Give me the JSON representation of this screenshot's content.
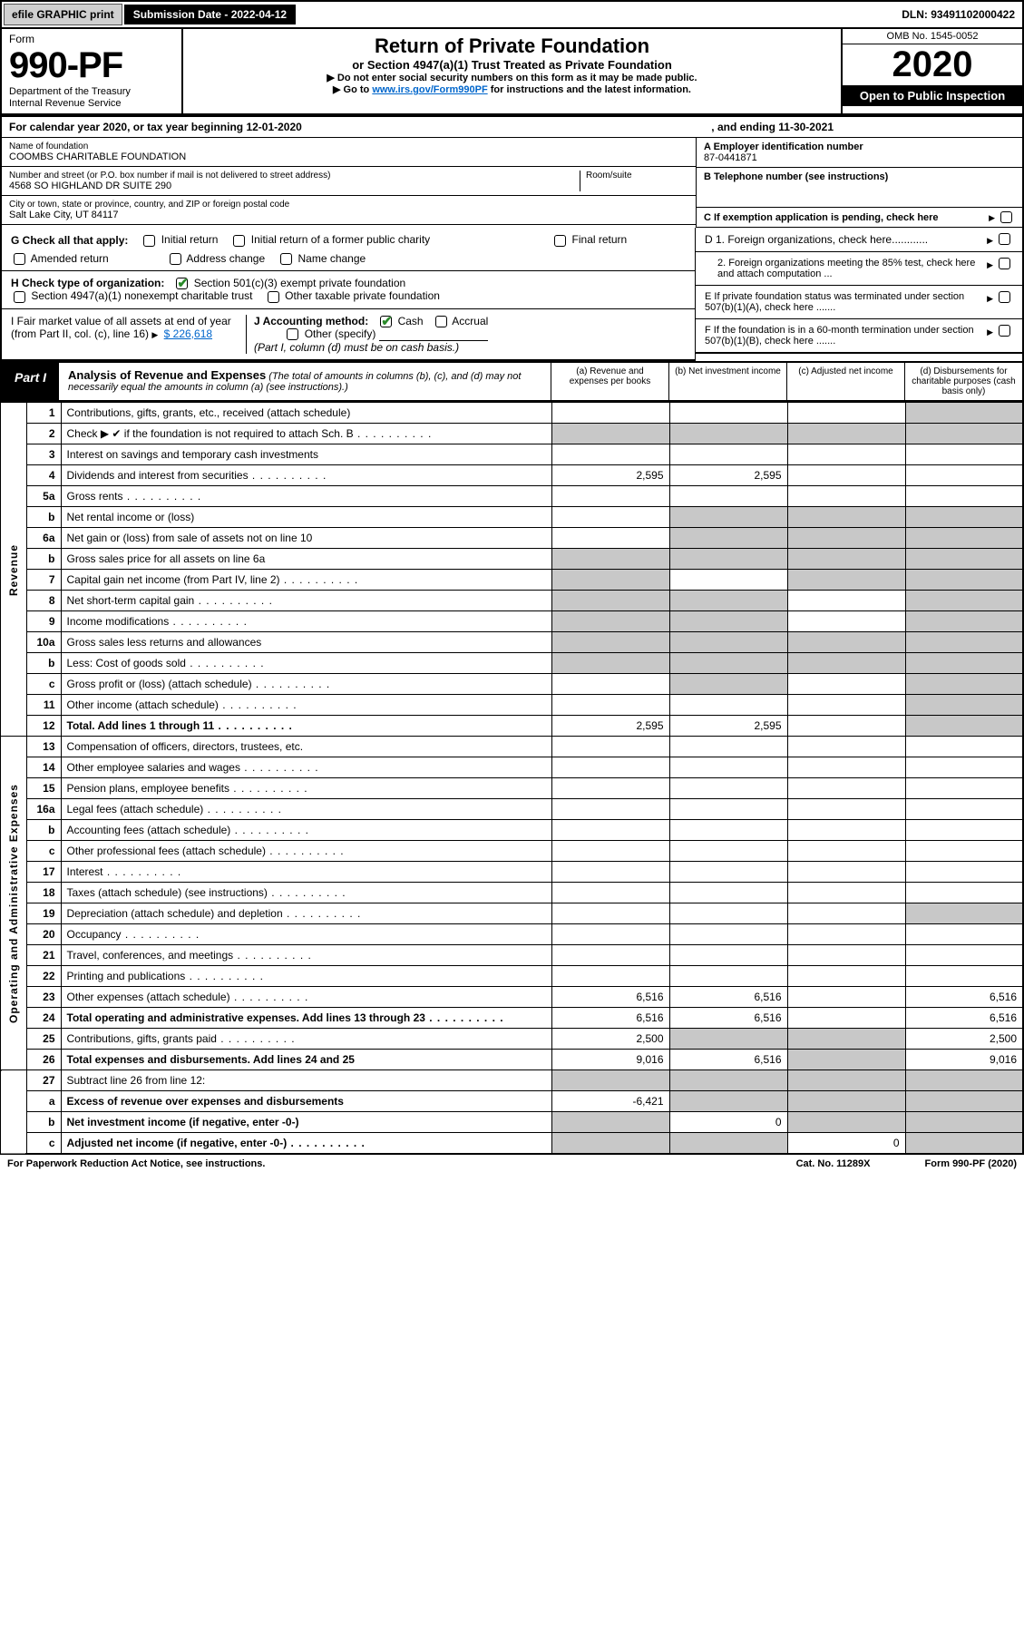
{
  "topbar": {
    "efile": "efile GRAPHIC print",
    "submission_label": "Submission Date - 2022-04-12",
    "dln": "DLN: 93491102000422"
  },
  "header": {
    "form_label": "Form",
    "form_number": "990-PF",
    "dept": "Department of the Treasury\nInternal Revenue Service",
    "title": "Return of Private Foundation",
    "subtitle": "or Section 4947(a)(1) Trust Treated as Private Foundation",
    "instr1": "▶ Do not enter social security numbers on this form as it may be made public.",
    "instr2_pre": "▶ Go to ",
    "instr2_link": "www.irs.gov/Form990PF",
    "instr2_post": " for instructions and the latest information.",
    "omb": "OMB No. 1545-0052",
    "year": "2020",
    "open": "Open to Public Inspection"
  },
  "calendar": {
    "text_a": "For calendar year 2020, or tax year beginning 12-01-2020",
    "text_b": ", and ending 11-30-2021"
  },
  "entity": {
    "name_label": "Name of foundation",
    "name": "COOMBS CHARITABLE FOUNDATION",
    "addr_label": "Number and street (or P.O. box number if mail is not delivered to street address)",
    "addr": "4568 SO HIGHLAND DR SUITE 290",
    "room_label": "Room/suite",
    "city_label": "City or town, state or province, country, and ZIP or foreign postal code",
    "city": "Salt Lake City, UT  84117",
    "a_label": "A Employer identification number",
    "ein": "87-0441871",
    "b_label": "B Telephone number (see instructions)",
    "c_label": "C If exemption application is pending, check here"
  },
  "checks": {
    "g_label": "G Check all that apply:",
    "g_items": [
      "Initial return",
      "Initial return of a former public charity",
      "Final return",
      "Amended return",
      "Address change",
      "Name change"
    ],
    "h_label": "H Check type of organization:",
    "h_items": [
      "Section 501(c)(3) exempt private foundation",
      "Section 4947(a)(1) nonexempt charitable trust",
      "Other taxable private foundation"
    ],
    "i_label": "I Fair market value of all assets at end of year (from Part II, col. (c), line 16)",
    "i_value": "$  226,618",
    "j_label": "J Accounting method:",
    "j_cash": "Cash",
    "j_accrual": "Accrual",
    "j_other": "Other (specify)",
    "j_note": "(Part I, column (d) must be on cash basis.)",
    "d1": "D 1. Foreign organizations, check here............",
    "d2": "2. Foreign organizations meeting the 85% test, check here and attach computation ...",
    "e": "E  If private foundation status was terminated under section 507(b)(1)(A), check here .......",
    "f": "F  If the foundation is in a 60-month termination under section 507(b)(1)(B), check here ......."
  },
  "part1": {
    "label": "Part I",
    "title": "Analysis of Revenue and Expenses",
    "note": "(The total of amounts in columns (b), (c), and (d) may not necessarily equal the amounts in column (a) (see instructions).)",
    "col_a": "(a)   Revenue and expenses per books",
    "col_b": "(b)   Net investment income",
    "col_c": "(c)   Adjusted net income",
    "col_d": "(d)  Disbursements for charitable purposes (cash basis only)"
  },
  "sections": {
    "revenue": "Revenue",
    "expenses": "Operating and Administrative Expenses"
  },
  "rows": [
    {
      "n": "1",
      "d": "Contributions, gifts, grants, etc., received (attach schedule)",
      "a": "",
      "b": "",
      "c": "",
      "dsh": "",
      "shade_b": false,
      "shade_c": false,
      "shade_d": true
    },
    {
      "n": "2",
      "d": "Check ▶ ✔ if the foundation is not required to attach Sch. B",
      "a": "",
      "b": "",
      "c": "",
      "dsh": "",
      "shade_a": true,
      "shade_b": true,
      "shade_c": true,
      "shade_d": true,
      "dots": true
    },
    {
      "n": "3",
      "d": "Interest on savings and temporary cash investments",
      "a": "",
      "b": "",
      "c": "",
      "dsh": ""
    },
    {
      "n": "4",
      "d": "Dividends and interest from securities",
      "a": "2,595",
      "b": "2,595",
      "c": "",
      "dsh": "",
      "dots": true
    },
    {
      "n": "5a",
      "d": "Gross rents",
      "a": "",
      "b": "",
      "c": "",
      "dsh": "",
      "dots": true
    },
    {
      "n": "b",
      "d": "Net rental income or (loss)",
      "a": "",
      "b": "",
      "c": "",
      "dsh": "",
      "shade_a": false,
      "shade_b": true,
      "shade_c": true,
      "shade_d": true,
      "inset": true
    },
    {
      "n": "6a",
      "d": "Net gain or (loss) from sale of assets not on line 10",
      "a": "",
      "b": "",
      "c": "",
      "dsh": "",
      "shade_b": true,
      "shade_c": true,
      "shade_d": true
    },
    {
      "n": "b",
      "d": "Gross sales price for all assets on line 6a",
      "a": "",
      "b": "",
      "c": "",
      "dsh": "",
      "shade_a": true,
      "shade_b": true,
      "shade_c": true,
      "shade_d": true,
      "inset": true
    },
    {
      "n": "7",
      "d": "Capital gain net income (from Part IV, line 2)",
      "a": "",
      "b": "",
      "c": "",
      "dsh": "",
      "shade_a": true,
      "shade_c": true,
      "shade_d": true,
      "dots": true
    },
    {
      "n": "8",
      "d": "Net short-term capital gain",
      "a": "",
      "b": "",
      "c": "",
      "dsh": "",
      "shade_a": true,
      "shade_b": true,
      "shade_d": true,
      "dots": true
    },
    {
      "n": "9",
      "d": "Income modifications",
      "a": "",
      "b": "",
      "c": "",
      "dsh": "",
      "shade_a": true,
      "shade_b": true,
      "shade_d": true,
      "dots": true
    },
    {
      "n": "10a",
      "d": "Gross sales less returns and allowances",
      "a": "",
      "b": "",
      "c": "",
      "dsh": "",
      "shade_a": true,
      "shade_b": true,
      "shade_c": true,
      "shade_d": true,
      "inset": true
    },
    {
      "n": "b",
      "d": "Less: Cost of goods sold",
      "a": "",
      "b": "",
      "c": "",
      "dsh": "",
      "shade_a": true,
      "shade_b": true,
      "shade_c": true,
      "shade_d": true,
      "dots": true,
      "inset": true
    },
    {
      "n": "c",
      "d": "Gross profit or (loss) (attach schedule)",
      "a": "",
      "b": "",
      "c": "",
      "dsh": "",
      "shade_b": true,
      "shade_d": true,
      "dots": true
    },
    {
      "n": "11",
      "d": "Other income (attach schedule)",
      "a": "",
      "b": "",
      "c": "",
      "dsh": "",
      "shade_d": true,
      "dots": true
    },
    {
      "n": "12",
      "d": "Total. Add lines 1 through 11",
      "a": "2,595",
      "b": "2,595",
      "c": "",
      "dsh": "",
      "bold": true,
      "shade_d": true,
      "dots": true
    }
  ],
  "exp_rows": [
    {
      "n": "13",
      "d": "Compensation of officers, directors, trustees, etc."
    },
    {
      "n": "14",
      "d": "Other employee salaries and wages",
      "dots": true
    },
    {
      "n": "15",
      "d": "Pension plans, employee benefits",
      "dots": true
    },
    {
      "n": "16a",
      "d": "Legal fees (attach schedule)",
      "dots": true
    },
    {
      "n": "b",
      "d": "Accounting fees (attach schedule)",
      "dots": true
    },
    {
      "n": "c",
      "d": "Other professional fees (attach schedule)",
      "dots": true
    },
    {
      "n": "17",
      "d": "Interest",
      "dots": true
    },
    {
      "n": "18",
      "d": "Taxes (attach schedule) (see instructions)",
      "dots": true
    },
    {
      "n": "19",
      "d": "Depreciation (attach schedule) and depletion",
      "dots": true,
      "shade_d": true
    },
    {
      "n": "20",
      "d": "Occupancy",
      "dots": true
    },
    {
      "n": "21",
      "d": "Travel, conferences, and meetings",
      "dots": true
    },
    {
      "n": "22",
      "d": "Printing and publications",
      "dots": true
    },
    {
      "n": "23",
      "d": "Other expenses (attach schedule)",
      "a": "6,516",
      "b": "6,516",
      "dsh": "6,516",
      "dots": true
    },
    {
      "n": "24",
      "d": "Total operating and administrative expenses. Add lines 13 through 23",
      "a": "6,516",
      "b": "6,516",
      "dsh": "6,516",
      "bold": true,
      "dots": true
    },
    {
      "n": "25",
      "d": "Contributions, gifts, grants paid",
      "a": "2,500",
      "dsh": "2,500",
      "shade_b": true,
      "shade_c": true,
      "dots": true
    },
    {
      "n": "26",
      "d": "Total expenses and disbursements. Add lines 24 and 25",
      "a": "9,016",
      "b": "6,516",
      "dsh": "9,016",
      "bold": true,
      "shade_c": true
    }
  ],
  "net_rows": [
    {
      "n": "27",
      "d": "Subtract line 26 from line 12:",
      "shade_a": true,
      "shade_b": true,
      "shade_c": true,
      "shade_d": true
    },
    {
      "n": "a",
      "d": "Excess of revenue over expenses and disbursements",
      "a": "-6,421",
      "bold": true,
      "shade_b": true,
      "shade_c": true,
      "shade_d": true
    },
    {
      "n": "b",
      "d": "Net investment income (if negative, enter -0-)",
      "b": "0",
      "bold": true,
      "shade_a": true,
      "shade_c": true,
      "shade_d": true
    },
    {
      "n": "c",
      "d": "Adjusted net income (if negative, enter -0-)",
      "c": "0",
      "bold": true,
      "shade_a": true,
      "shade_b": true,
      "shade_d": true,
      "dots": true
    }
  ],
  "footer": {
    "left": "For Paperwork Reduction Act Notice, see instructions.",
    "mid": "Cat. No. 11289X",
    "right": "Form 990-PF (2020)"
  }
}
